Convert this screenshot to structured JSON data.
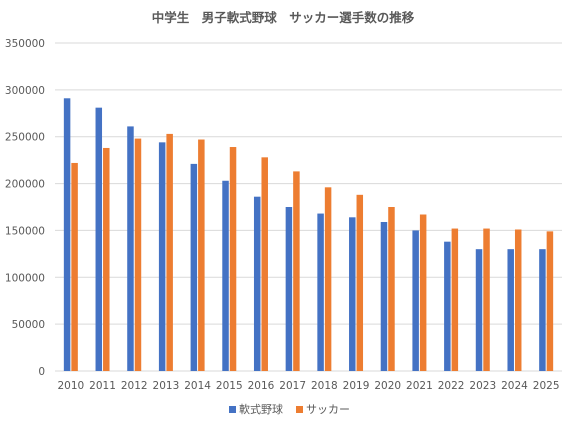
{
  "chart_data": {
    "type": "bar",
    "title": "中学生　男子軟式野球　サッカー選手数の推移",
    "xlabel": "",
    "ylabel": "",
    "ylim": [
      0,
      350000
    ],
    "ytick_step": 50000,
    "y_ticks": [
      "0",
      "50000",
      "100000",
      "150000",
      "200000",
      "250000",
      "300000",
      "350000"
    ],
    "grid": true,
    "legend_position": "bottom",
    "categories": [
      "2010",
      "2011",
      "2012",
      "2013",
      "2014",
      "2015",
      "2016",
      "2017",
      "2018",
      "2019",
      "2020",
      "2021",
      "2022",
      "2023",
      "2024",
      "2025"
    ],
    "series": [
      {
        "name": "軟式野球",
        "color": "#4472c4",
        "values": [
          291000,
          281000,
          261000,
          244000,
          221000,
          203000,
          186000,
          175000,
          168000,
          164000,
          159000,
          150000,
          138000,
          130000,
          130000,
          130000
        ]
      },
      {
        "name": "サッカー",
        "color": "#ed7d31",
        "values": [
          222000,
          238000,
          248000,
          253000,
          247000,
          239000,
          228000,
          213000,
          196000,
          188000,
          175000,
          167000,
          152000,
          152000,
          151000,
          149000
        ]
      }
    ]
  }
}
